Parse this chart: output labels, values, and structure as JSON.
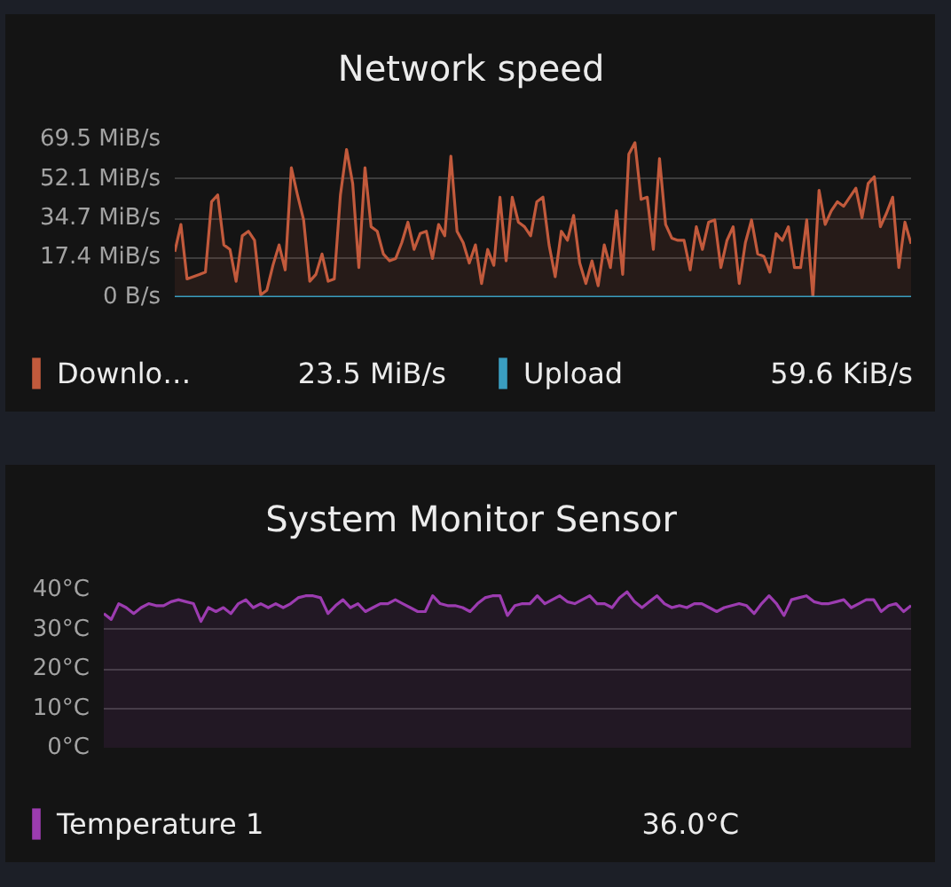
{
  "chart_data": [
    {
      "type": "area",
      "title": "Network speed",
      "categories": [
        null,
        null,
        null,
        null,
        null,
        null,
        null,
        null,
        null,
        null,
        null,
        null,
        null,
        null,
        null,
        null,
        null,
        null,
        null,
        null,
        null,
        null,
        null,
        null,
        null,
        null,
        null,
        null,
        null,
        null,
        null,
        null,
        null,
        null,
        null,
        null,
        null,
        null,
        null,
        null,
        null,
        null,
        null,
        null,
        null,
        null,
        null,
        null,
        null,
        null,
        null,
        null,
        null,
        null,
        null,
        null,
        null,
        null,
        null,
        null,
        null,
        null,
        null,
        null,
        null,
        null,
        null,
        null,
        null,
        null,
        null,
        null,
        null,
        null,
        null,
        null,
        null,
        null,
        null,
        null,
        null,
        null,
        null,
        null,
        null,
        null,
        null,
        null,
        null,
        null,
        null,
        null,
        null,
        null,
        null,
        null,
        null,
        null,
        null,
        null,
        null,
        null,
        null,
        null,
        null,
        null,
        null,
        null,
        null,
        null,
        null,
        null,
        null,
        null,
        null,
        null,
        null,
        null,
        null,
        null,
        null
      ],
      "series": [
        {
          "name": "Downlo…",
          "color": "#c25a3c",
          "values": [
            20,
            32,
            8,
            9,
            10,
            11,
            42,
            45,
            23,
            21,
            7,
            27,
            29,
            25,
            1,
            3,
            14,
            23,
            12,
            57,
            45,
            34,
            7,
            10,
            19,
            7,
            8,
            45,
            65,
            50,
            13,
            57,
            31,
            29,
            19,
            16,
            17,
            24,
            33,
            21,
            28,
            29,
            17,
            32,
            27,
            62,
            29,
            24,
            15,
            23,
            6,
            21,
            14,
            44,
            16,
            44,
            33,
            31,
            27,
            42,
            44,
            23,
            9,
            29,
            25,
            36,
            15,
            6,
            16,
            5,
            23,
            13,
            38,
            10,
            63,
            68,
            43,
            44,
            21,
            61,
            32,
            26,
            25,
            25,
            12,
            31,
            21,
            33,
            34,
            13,
            25,
            31,
            6,
            24,
            34,
            19,
            18,
            11,
            28,
            25,
            31,
            13,
            13,
            34,
            0,
            47,
            32,
            38,
            42,
            40,
            44,
            48,
            35,
            50,
            53,
            31,
            37,
            44,
            13,
            33,
            23.5
          ]
        },
        {
          "name": "Upload",
          "type": "line",
          "color": "#3a9dc0",
          "values": [
            0,
            0,
            0,
            0,
            0,
            0,
            0,
            0,
            0,
            0,
            0,
            0,
            0,
            0,
            0,
            0,
            0,
            0,
            0,
            0,
            0,
            0,
            0,
            0,
            0,
            0,
            0,
            0,
            0,
            0,
            0,
            0,
            0,
            0,
            0,
            0,
            0,
            0,
            0,
            0,
            0,
            0,
            0,
            0,
            0,
            0,
            0,
            0,
            0,
            0,
            0,
            0,
            0,
            0,
            0,
            0,
            0,
            0,
            0,
            0,
            0,
            0,
            0,
            0,
            0,
            0,
            0,
            0,
            0,
            0,
            0,
            0,
            0,
            0,
            0,
            0,
            0,
            0,
            0,
            0,
            0,
            0,
            0,
            0,
            0,
            0,
            0,
            0,
            0,
            0,
            0,
            0,
            0,
            0,
            0,
            0,
            0,
            0,
            0,
            0,
            0,
            0,
            0,
            0,
            0,
            0,
            0,
            0,
            0,
            0,
            0,
            0,
            0,
            0,
            0,
            0,
            0,
            0,
            0,
            0,
            0
          ]
        }
      ],
      "ylim": [
        0,
        69.5
      ],
      "yticks": [
        {
          "value": 0,
          "label": "0 B/s"
        },
        {
          "value": 17.4,
          "label": "17.4 MiB/s"
        },
        {
          "value": 34.7,
          "label": "34.7 MiB/s"
        },
        {
          "value": 52.1,
          "label": "52.1 MiB/s"
        },
        {
          "value": 69.5,
          "label": "69.5 MiB/s"
        }
      ],
      "grid": "y",
      "legend": "bottom",
      "tick_labels": "y",
      "annotations": [
        "23.5 MiB/s",
        "59.6 KiB/s"
      ]
    },
    {
      "type": "area",
      "title": "System Monitor Sensor",
      "categories": [
        null,
        null,
        null,
        null,
        null,
        null,
        null,
        null,
        null,
        null,
        null,
        null,
        null,
        null,
        null,
        null,
        null,
        null,
        null,
        null,
        null,
        null,
        null,
        null,
        null,
        null,
        null,
        null,
        null,
        null,
        null,
        null,
        null,
        null,
        null,
        null,
        null,
        null,
        null,
        null,
        null,
        null,
        null,
        null,
        null,
        null,
        null,
        null,
        null,
        null,
        null,
        null,
        null,
        null,
        null,
        null,
        null,
        null,
        null,
        null,
        null,
        null,
        null,
        null,
        null,
        null,
        null,
        null,
        null,
        null,
        null,
        null,
        null,
        null,
        null,
        null,
        null,
        null,
        null,
        null,
        null,
        null,
        null,
        null,
        null,
        null,
        null,
        null,
        null,
        null,
        null,
        null,
        null,
        null,
        null,
        null,
        null,
        null,
        null,
        null,
        null,
        null,
        null,
        null,
        null,
        null,
        null,
        null,
        null
      ],
      "series": [
        {
          "name": "Temperature 1",
          "color": "#9c3cb0",
          "values": [
            34,
            32.5,
            36.5,
            35.5,
            34,
            35.5,
            36.5,
            36,
            36,
            37,
            37.5,
            37,
            36.5,
            32,
            35.5,
            34.5,
            35.5,
            34,
            36.5,
            37.5,
            35.5,
            36.5,
            35.5,
            36.5,
            35.5,
            36.5,
            38,
            38.5,
            38.5,
            38,
            34,
            36,
            37.5,
            35.5,
            36.5,
            34.5,
            35.5,
            36.5,
            36.5,
            37.5,
            36.5,
            35.5,
            34.5,
            34.5,
            38.5,
            36.5,
            36,
            36,
            35.5,
            34.5,
            36.5,
            38,
            38.5,
            38.5,
            33.5,
            36,
            36.5,
            36.5,
            38.5,
            36.5,
            37.5,
            38.5,
            37,
            36.5,
            37.5,
            38.5,
            36.5,
            36.5,
            35.5,
            38,
            39.5,
            37,
            35.5,
            37,
            38.5,
            36.5,
            35.5,
            36,
            35.5,
            36.5,
            36.5,
            35.5,
            34.5,
            35.5,
            36,
            36.5,
            36,
            34,
            36.5,
            38.5,
            36.5,
            33.5,
            37.5,
            38,
            38.5,
            37,
            36.5,
            36.5,
            37,
            37.5,
            35.5,
            36.5,
            37.5,
            37.5,
            34.5,
            36,
            36.5,
            34.5,
            36
          ]
        }
      ],
      "ylim": [
        0,
        40
      ],
      "yticks": [
        {
          "value": 0,
          "label": "0°C"
        },
        {
          "value": 10,
          "label": "10°C"
        },
        {
          "value": 20,
          "label": "20°C"
        },
        {
          "value": 30,
          "label": "30°C"
        },
        {
          "value": 40,
          "label": "40°C"
        }
      ],
      "grid": "y",
      "legend": "bottom",
      "tick_labels": "y",
      "annotations": [
        "36.0°C"
      ]
    }
  ]
}
